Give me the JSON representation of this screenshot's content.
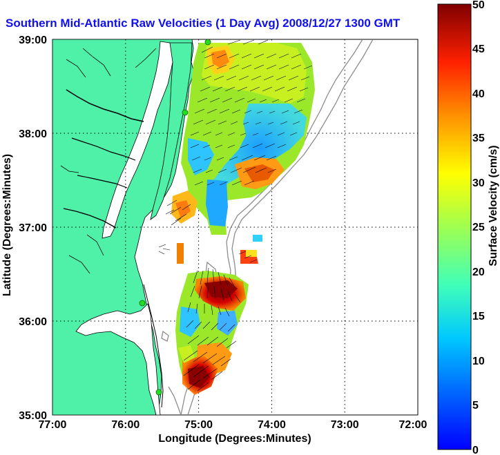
{
  "title": "Southern Mid-Atlantic Raw Velocities (1 Day Avg) 2008/12/27 1300 GMT",
  "map": {
    "x_label": "Longitude (Degrees:Minutes)",
    "y_label": "Latitude (Degrees:Minutes)",
    "x_ticks": [
      "77:00",
      "76:00",
      "75:00",
      "74:00",
      "73:00",
      "72:00"
    ],
    "y_ticks": [
      "39:00",
      "38:00",
      "37:00",
      "36:00",
      "35:00"
    ],
    "lon_range": [
      -77,
      -72
    ],
    "lat_range": [
      35,
      39
    ],
    "grid": "dotted",
    "colors": {
      "land": "#4ff0a8",
      "water": "#ffffff",
      "coastline": "#000000",
      "bathymetry": "#8c8c8c",
      "station": "#22dd22"
    }
  },
  "colorbar": {
    "label": "Surface Velocity (cm/s)",
    "ticks": [
      "50",
      "45",
      "40",
      "35",
      "30",
      "25",
      "20",
      "15",
      "10",
      "5",
      "0"
    ],
    "range": [
      0,
      50
    ],
    "colormap": "jet"
  }
}
